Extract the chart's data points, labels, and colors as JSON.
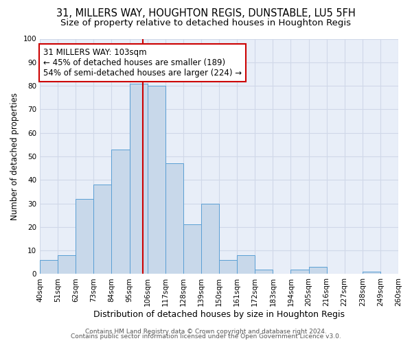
{
  "title": "31, MILLERS WAY, HOUGHTON REGIS, DUNSTABLE, LU5 5FH",
  "subtitle": "Size of property relative to detached houses in Houghton Regis",
  "xlabel": "Distribution of detached houses by size in Houghton Regis",
  "ylabel": "Number of detached properties",
  "bin_labels": [
    "40sqm",
    "51sqm",
    "62sqm",
    "73sqm",
    "84sqm",
    "95sqm",
    "106sqm",
    "117sqm",
    "128sqm",
    "139sqm",
    "150sqm",
    "161sqm",
    "172sqm",
    "183sqm",
    "194sqm",
    "205sqm",
    "216sqm",
    "227sqm",
    "238sqm",
    "249sqm",
    "260sqm"
  ],
  "bar_values": [
    6,
    8,
    32,
    38,
    53,
    81,
    80,
    47,
    21,
    30,
    6,
    8,
    2,
    0,
    2,
    3,
    0,
    0,
    1,
    0
  ],
  "bin_edges": [
    40,
    51,
    62,
    73,
    84,
    95,
    106,
    117,
    128,
    139,
    150,
    161,
    172,
    183,
    194,
    205,
    216,
    227,
    238,
    249,
    260
  ],
  "bar_color": "#c8d8ea",
  "bar_edge_color": "#5a9fd4",
  "property_value": 103,
  "vline_color": "#cc0000",
  "annotation_text": "31 MILLERS WAY: 103sqm\n← 45% of detached houses are smaller (189)\n54% of semi-detached houses are larger (224) →",
  "annotation_box_color": "#ffffff",
  "annotation_box_edge": "#cc0000",
  "ylim": [
    0,
    100
  ],
  "yticks": [
    0,
    10,
    20,
    30,
    40,
    50,
    60,
    70,
    80,
    90,
    100
  ],
  "grid_color": "#d0d8e8",
  "plot_bg_color": "#e8eef8",
  "fig_bg_color": "#ffffff",
  "footer1": "Contains HM Land Registry data © Crown copyright and database right 2024.",
  "footer2": "Contains public sector information licensed under the Open Government Licence v3.0.",
  "title_fontsize": 10.5,
  "subtitle_fontsize": 9.5,
  "xlabel_fontsize": 9,
  "ylabel_fontsize": 8.5,
  "tick_fontsize": 7.5,
  "annotation_fontsize": 8.5,
  "footer_fontsize": 6.5
}
